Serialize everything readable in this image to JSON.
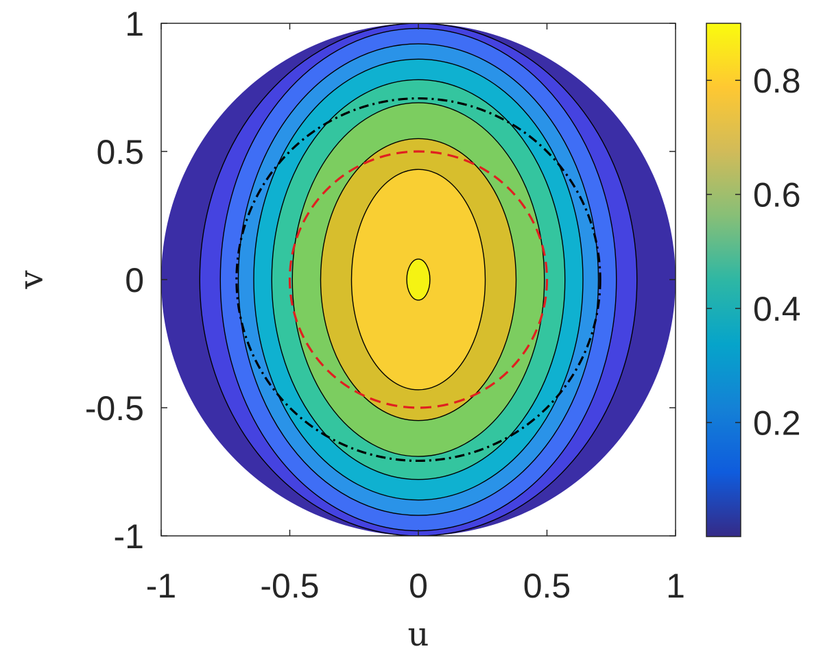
{
  "chart_data": {
    "type": "contour",
    "title": "",
    "xlabel": "u",
    "ylabel": "v",
    "xlim": [
      -1,
      1
    ],
    "ylim": [
      -1,
      1
    ],
    "xticks": [
      -1,
      -0.5,
      0,
      0.5,
      1
    ],
    "yticks": [
      -1,
      -0.5,
      0,
      0.5,
      1
    ],
    "xtick_labels": [
      "-1",
      "-0.5",
      "0",
      "0.5",
      "1"
    ],
    "ytick_labels": [
      "-1",
      "-0.5",
      "0",
      "0.5",
      "1"
    ],
    "domain": "unit disk u^2 + v^2 <= 1",
    "max_value": 0.9,
    "contour_levels": [
      0.1,
      0.2,
      0.3,
      0.4,
      0.5,
      0.6,
      0.7,
      0.8,
      0.9
    ],
    "filled_bands": [
      {
        "level": 0.0,
        "semi_axis_u": 1.0,
        "semi_axis_v": 1.0,
        "color": "#3b2ea6"
      },
      {
        "level": 0.1,
        "semi_axis_u": 0.85,
        "semi_axis_v": 1.0,
        "color": "#4543e0"
      },
      {
        "level": 0.2,
        "semi_axis_u": 0.77,
        "semi_axis_v": 0.98,
        "color": "#3f6ef5"
      },
      {
        "level": 0.3,
        "semi_axis_u": 0.7,
        "semi_axis_v": 0.92,
        "color": "#2a93e8"
      },
      {
        "level": 0.4,
        "semi_axis_u": 0.64,
        "semi_axis_v": 0.86,
        "color": "#0fb1d0"
      },
      {
        "level": 0.5,
        "semi_axis_u": 0.57,
        "semi_axis_v": 0.78,
        "color": "#34c59f"
      },
      {
        "level": 0.6,
        "semi_axis_u": 0.49,
        "semi_axis_v": 0.69,
        "color": "#7ccd60"
      },
      {
        "level": 0.7,
        "semi_axis_u": 0.38,
        "semi_axis_v": 0.55,
        "color": "#d7be2d"
      },
      {
        "level": 0.8,
        "semi_axis_u": 0.26,
        "semi_axis_v": 0.43,
        "color": "#f9cf33"
      },
      {
        "level": 0.9,
        "semi_axis_u": 0.045,
        "semi_axis_v": 0.08,
        "color": "#f5f313"
      }
    ],
    "reference_circles": [
      {
        "radius": 0.707,
        "style": "dash-dot",
        "color": "#000000"
      },
      {
        "radius": 0.5,
        "style": "dashed",
        "color": "#e02020"
      }
    ],
    "colorbar": {
      "range": [
        0,
        0.9
      ],
      "ticks": [
        0.2,
        0.4,
        0.6,
        0.8
      ],
      "tick_labels": [
        "0.2",
        "0.4",
        "0.6",
        "0.8"
      ],
      "colormap": "parula",
      "stops": [
        "#352a87",
        "#0f5cdd",
        "#1481d6",
        "#06a4ca",
        "#2eb7a4",
        "#87bf77",
        "#d1bb59",
        "#fec832",
        "#f9fb0e"
      ]
    }
  }
}
